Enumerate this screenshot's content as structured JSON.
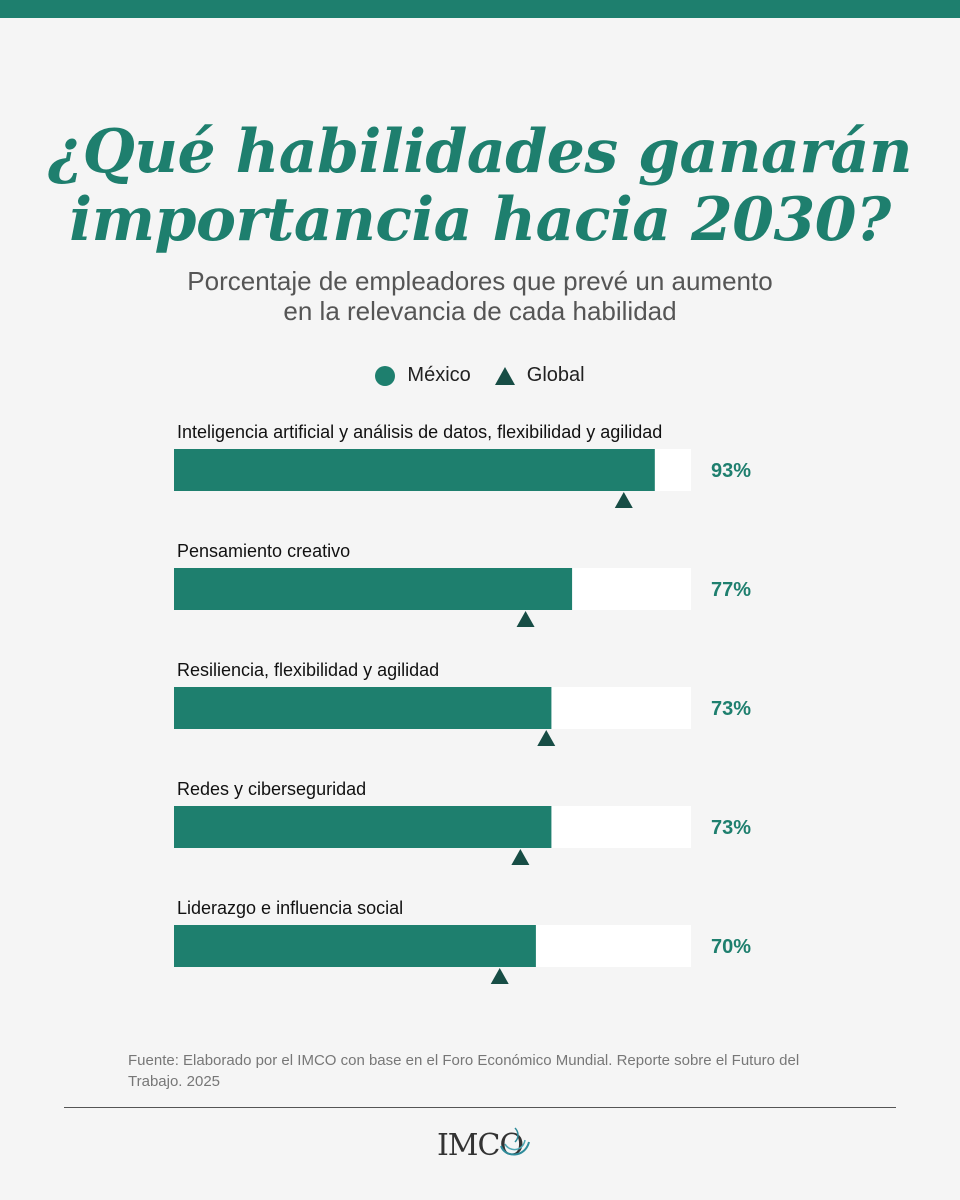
{
  "title_lines": [
    "¿Qué habilidades ganarán",
    "importancia hacia 2030?"
  ],
  "subtitle_lines": [
    "Porcentaje de empleadores que prevé un aumento",
    "en la relevancia de cada habilidad"
  ],
  "legend": {
    "mexico": "México",
    "global": "Global"
  },
  "colors": {
    "accent": "#1e7f6e",
    "global_marker": "#174d45",
    "track": "#ffffff",
    "background": "#f5f5f5"
  },
  "chart_data": {
    "type": "bar",
    "orientation": "horizontal",
    "xlim": [
      0,
      100
    ],
    "categories": [
      "Inteligencia artificial y análisis de datos, flexibilidad y agilidad",
      "Pensamiento creativo",
      "Resiliencia, flexibilidad y agilidad",
      "Redes y ciberseguridad",
      "Liderazgo e influencia social"
    ],
    "series": [
      {
        "name": "México",
        "values": [
          93,
          77,
          73,
          73,
          70
        ],
        "labels": [
          "93%",
          "77%",
          "73%",
          "73%",
          "70%"
        ]
      },
      {
        "name": "Global",
        "values": [
          87,
          68,
          72,
          67,
          63
        ]
      }
    ],
    "legend_position": "top-center"
  },
  "source": "Fuente: Elaborado por el IMCO con base en el Foro Económico Mundial. Reporte sobre el Futuro del Trabajo. 2025",
  "logo": "IMCO"
}
